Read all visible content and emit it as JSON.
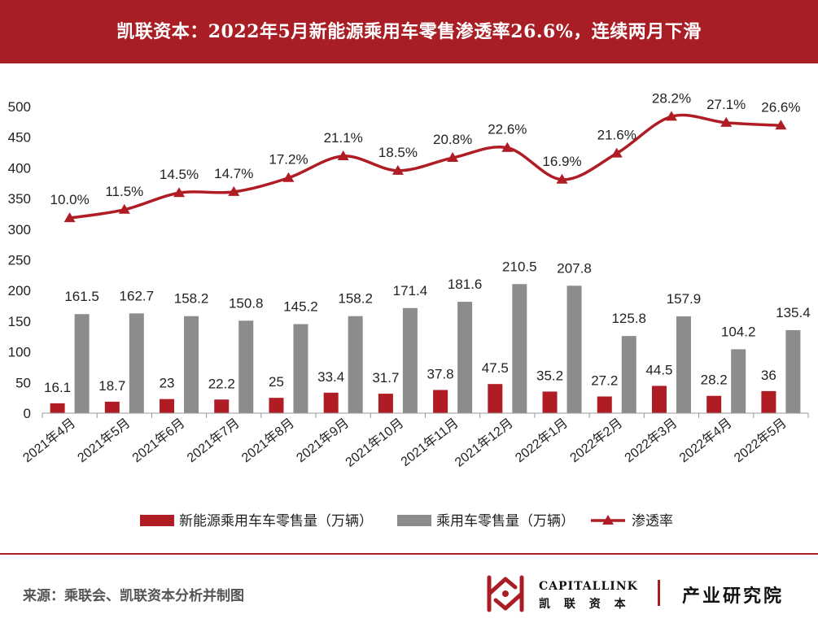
{
  "header": {
    "title": "凯联资本：2022年5月新能源乘用车零售渗透率26.6%，连续两月下滑"
  },
  "footer": {
    "source": "来源：乘联会、凯联资本分析并制图",
    "brand_en": "CAPITALLINK",
    "brand_cn": "凯 联 资 本",
    "department": "产业研究院"
  },
  "colors": {
    "header_bg": "#a91d25",
    "nev_bar": "#b01c24",
    "total_bar": "#8c8c8c",
    "rate_line": "#b01c24"
  },
  "chart_data": {
    "type": "bar",
    "categories": [
      "2021年4月",
      "2021年5月",
      "2021年6月",
      "2021年7月",
      "2021年8月",
      "2021年9月",
      "2021年10月",
      "2021年11月",
      "2021年12月",
      "2022年1月",
      "2022年2月",
      "2022年3月",
      "2022年4月",
      "2022年5月"
    ],
    "series": [
      {
        "name": "新能源乘用车车零售量（万辆）",
        "type": "bar",
        "values": [
          16.1,
          18.7,
          23,
          22.2,
          25,
          33.4,
          31.7,
          37.8,
          47.5,
          35.2,
          27.2,
          44.5,
          28.2,
          36
        ],
        "labels": [
          "16.1",
          "18.7",
          "23",
          "22.2",
          "25",
          "33.4",
          "31.7",
          "37.8",
          "47.5",
          "35.2",
          "27.2",
          "44.5",
          "28.2",
          "36"
        ]
      },
      {
        "name": "乘用车零售量（万辆）",
        "type": "bar",
        "values": [
          161.5,
          162.7,
          158.2,
          150.8,
          145.2,
          158.2,
          171.4,
          181.6,
          210.5,
          207.8,
          125.8,
          157.9,
          104.2,
          135.4
        ],
        "labels": [
          "161.5",
          "162.7",
          "158.2",
          "150.8",
          "145.2",
          "158.2",
          "171.4",
          "181.6",
          "210.5",
          "207.8",
          "125.8",
          "157.9",
          "104.2",
          "135.4"
        ]
      },
      {
        "name": "渗透率",
        "type": "line",
        "values": [
          10.0,
          11.5,
          14.5,
          14.7,
          17.2,
          21.1,
          18.5,
          20.8,
          22.6,
          16.9,
          21.6,
          28.2,
          27.1,
          26.6
        ],
        "labels": [
          "10.0%",
          "11.5%",
          "14.5%",
          "14.7%",
          "17.2%",
          "21.1%",
          "18.5%",
          "20.8%",
          "22.6%",
          "16.9%",
          "21.6%",
          "28.2%",
          "27.1%",
          "26.6%"
        ]
      }
    ],
    "ylim": [
      0,
      500
    ],
    "yticks": [
      "0",
      "50",
      "100",
      "150",
      "200",
      "250",
      "300",
      "350",
      "400",
      "450",
      "500"
    ],
    "rate_scale_ylim": [
      -25,
      30
    ],
    "legend": "bottom",
    "grid": false
  }
}
